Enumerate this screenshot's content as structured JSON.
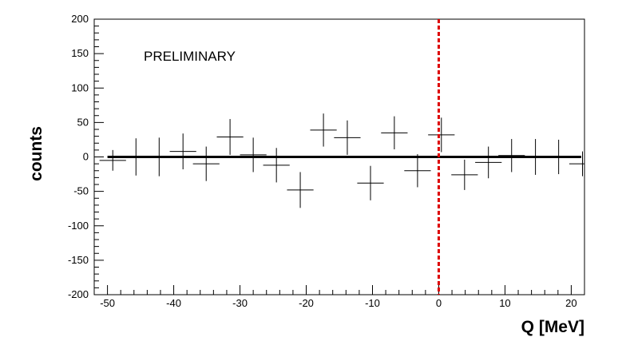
{
  "chart_data": {
    "type": "scatter",
    "title": "",
    "xlabel": "Q [MeV]",
    "ylabel": "counts",
    "xlim": [
      -52,
      22
    ],
    "ylim": [
      -200,
      200
    ],
    "x_ticks": [
      -50,
      -40,
      -30,
      -20,
      -10,
      0,
      10,
      20
    ],
    "y_ticks": [
      -200,
      -150,
      -100,
      -50,
      0,
      50,
      100,
      150,
      200
    ],
    "annotation": "PRELIMINARY",
    "bin_half_width": 2,
    "reference_line": {
      "y": 0,
      "color": "#000000"
    },
    "marker_line": {
      "x": 0,
      "color": "#dd0000",
      "style": "dashed"
    },
    "series": [
      {
        "name": "",
        "x": [
          -49.2,
          -45.7,
          -42.2,
          -38.6,
          -35.1,
          -31.5,
          -28.0,
          -24.5,
          -20.9,
          -17.4,
          -13.8,
          -10.3,
          -6.7,
          -3.2,
          0.4,
          3.9,
          7.5,
          11.0,
          14.6,
          18.1,
          21.7
        ],
        "y": [
          -5,
          0,
          0,
          8,
          -10,
          29,
          3,
          -12,
          -48,
          39,
          28,
          -38,
          35,
          -20,
          32,
          -26,
          -8,
          2,
          0,
          0,
          -10
        ],
        "err": [
          15,
          27,
          28,
          26,
          25,
          26,
          25,
          25,
          26,
          24,
          25,
          25,
          24,
          24,
          25,
          22,
          23,
          24,
          26,
          25,
          18
        ]
      }
    ]
  }
}
